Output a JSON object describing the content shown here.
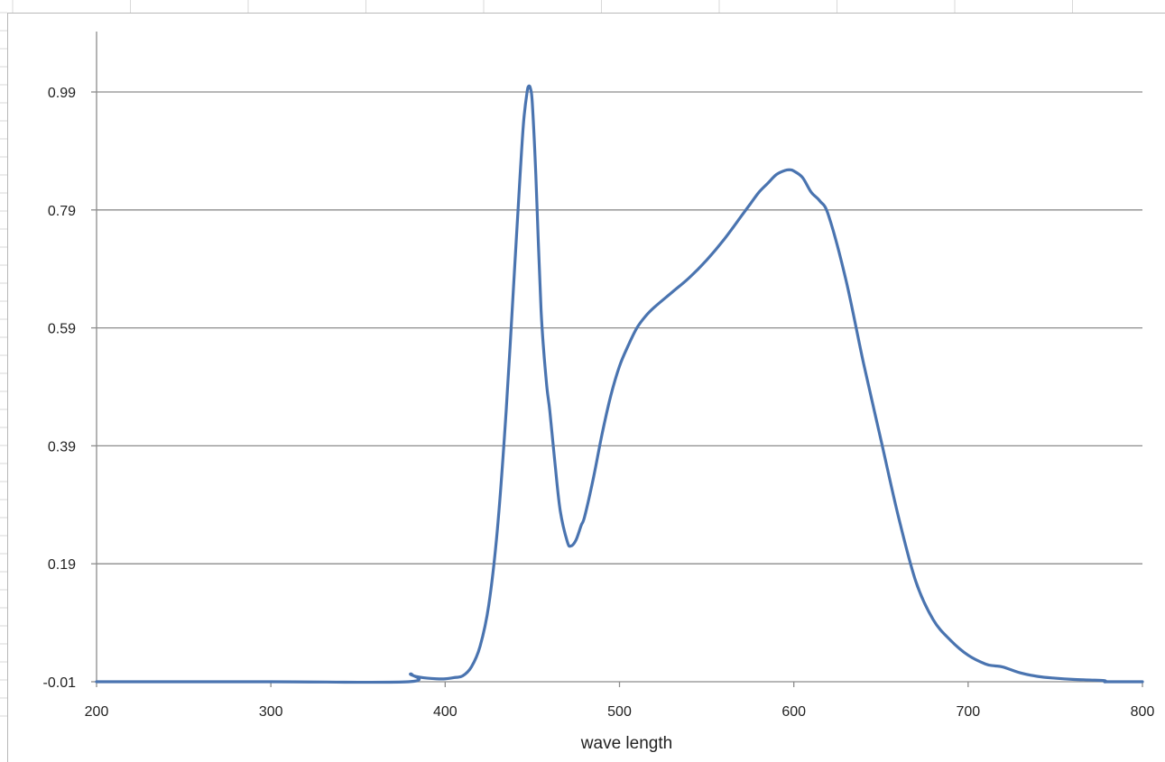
{
  "chart_data": {
    "type": "line",
    "title": "",
    "xlabel": "wave length",
    "ylabel": "",
    "xlim": [
      200,
      800
    ],
    "ylim": [
      -0.01,
      1.09
    ],
    "x_ticks": [
      200,
      300,
      400,
      500,
      600,
      700,
      800
    ],
    "y_ticks": [
      -0.01,
      0.19,
      0.39,
      0.59,
      0.79,
      0.99
    ],
    "x_tick_labels": [
      "200",
      "300",
      "400",
      "500",
      "600",
      "700",
      "800"
    ],
    "y_tick_labels": [
      "-0.01",
      "0.19",
      "0.39",
      "0.59",
      "0.79",
      "0.99"
    ],
    "grid": "horizontal",
    "legend": "none",
    "line_color": "#4a74b0",
    "gridline_color": "#8c8c8c",
    "series": [
      {
        "x": [
          200,
          300,
          379,
          380,
          382,
          385,
          390,
          395,
          400,
          405,
          410,
          415,
          420,
          425,
          430,
          435,
          440,
          443,
          445,
          447,
          448,
          449,
          450,
          452,
          455,
          458,
          460,
          463,
          466,
          470,
          472,
          475,
          478,
          480,
          485,
          490,
          495,
          500,
          505,
          510,
          515,
          520,
          530,
          540,
          550,
          560,
          570,
          575,
          580,
          585,
          590,
          595,
          598,
          600,
          605,
          610,
          615,
          620,
          630,
          640,
          650,
          660,
          670,
          680,
          690,
          700,
          710,
          715,
          720,
          730,
          740,
          750,
          760,
          770,
          778,
          779,
          780,
          800
        ],
        "y": [
          -0.01,
          -0.01,
          -0.01,
          0.003,
          0.0,
          -0.002,
          -0.004,
          -0.005,
          -0.005,
          -0.003,
          0.0,
          0.015,
          0.05,
          0.12,
          0.25,
          0.45,
          0.7,
          0.85,
          0.94,
          0.99,
          1.0,
          0.995,
          0.97,
          0.85,
          0.62,
          0.5,
          0.45,
          0.36,
          0.28,
          0.228,
          0.22,
          0.23,
          0.255,
          0.27,
          0.335,
          0.41,
          0.475,
          0.525,
          0.56,
          0.59,
          0.61,
          0.625,
          0.65,
          0.675,
          0.705,
          0.74,
          0.78,
          0.8,
          0.82,
          0.835,
          0.85,
          0.857,
          0.858,
          0.856,
          0.845,
          0.82,
          0.805,
          0.78,
          0.67,
          0.53,
          0.4,
          0.27,
          0.16,
          0.095,
          0.06,
          0.035,
          0.02,
          0.017,
          0.015,
          0.005,
          -0.001,
          -0.004,
          -0.006,
          -0.007,
          -0.008,
          -0.01,
          -0.01,
          -0.01
        ]
      }
    ]
  }
}
